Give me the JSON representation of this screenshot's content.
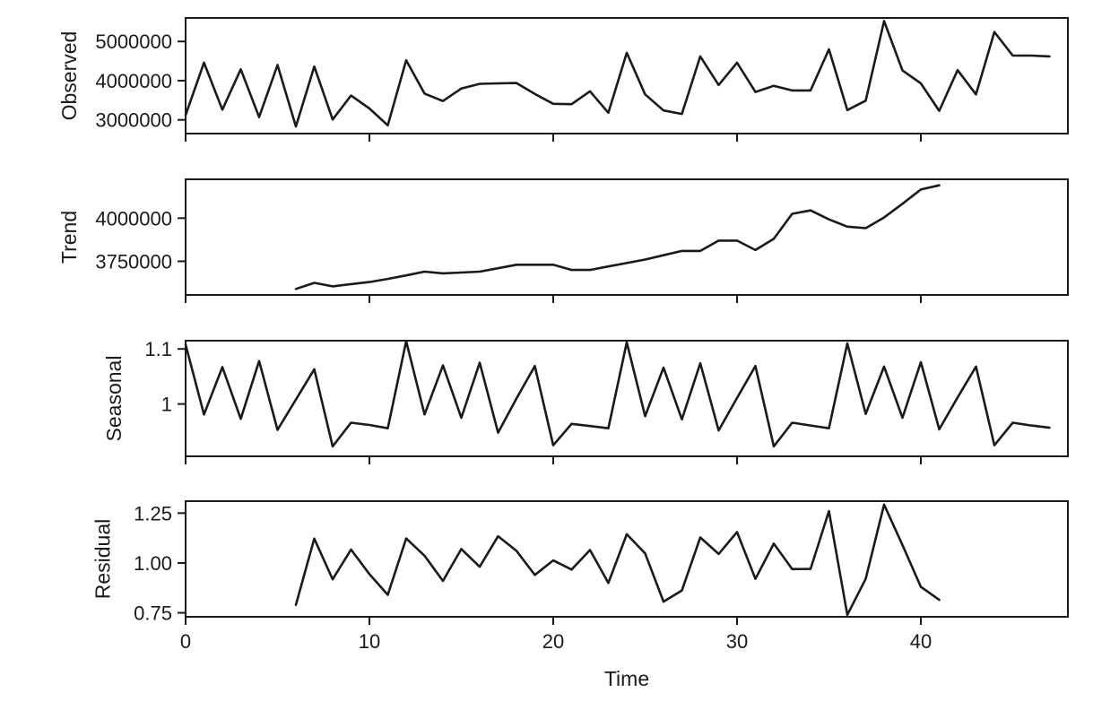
{
  "chart_data": {
    "type": "line",
    "xlabel": "Time",
    "xlim": [
      0,
      48
    ],
    "x_ticks": [
      0,
      10,
      20,
      30,
      40
    ],
    "panels": [
      {
        "name": "observed",
        "ylabel": "Observed",
        "ylim": [
          2650000,
          5600000
        ],
        "y_ticks": [
          3000000,
          4000000,
          5000000
        ],
        "x": [
          0,
          1,
          2,
          3,
          4,
          5,
          6,
          7,
          8,
          9,
          10,
          11,
          12,
          13,
          14,
          15,
          16,
          17,
          18,
          19,
          20,
          21,
          22,
          23,
          24,
          25,
          26,
          27,
          28,
          29,
          30,
          31,
          32,
          33,
          34,
          35,
          36,
          37,
          38,
          39,
          40,
          41,
          42,
          43,
          44,
          45,
          46,
          47
        ],
        "values": [
          3120000,
          4460000,
          3260000,
          4290000,
          3070000,
          4400000,
          2830000,
          4360000,
          3010000,
          3620000,
          3290000,
          2860000,
          4520000,
          3670000,
          3480000,
          3800000,
          3920000,
          3930000,
          3940000,
          3660000,
          3410000,
          3400000,
          3730000,
          3180000,
          4710000,
          3650000,
          3240000,
          3150000,
          4620000,
          3890000,
          4460000,
          3710000,
          3870000,
          3750000,
          3750000,
          4800000,
          3250000,
          3490000,
          5520000,
          4260000,
          3930000,
          3230000,
          4270000,
          3650000,
          5240000,
          4640000,
          4640000,
          4620000
        ]
      },
      {
        "name": "trend",
        "ylabel": "Trend",
        "ylim": [
          3555000,
          4225000
        ],
        "y_ticks": [
          3750000,
          4000000
        ],
        "x": [
          6,
          7,
          8,
          9,
          10,
          11,
          12,
          13,
          14,
          15,
          16,
          17,
          18,
          19,
          20,
          21,
          22,
          23,
          24,
          25,
          26,
          27,
          28,
          29,
          30,
          31,
          32,
          33,
          34,
          35,
          36,
          37,
          38,
          39,
          40,
          41
        ],
        "values": [
          3590000,
          3625000,
          3605000,
          3618000,
          3630000,
          3648000,
          3668000,
          3690000,
          3680000,
          3685000,
          3690000,
          3710000,
          3730000,
          3730000,
          3730000,
          3700000,
          3700000,
          3720000,
          3740000,
          3760000,
          3785000,
          3810000,
          3810000,
          3870000,
          3870000,
          3815000,
          3880000,
          4025000,
          4045000,
          3993000,
          3951000,
          3942000,
          4004000,
          4083000,
          4166000,
          4190000
        ]
      },
      {
        "name": "seasonal",
        "ylabel": "Seasonal",
        "ylim": [
          0.905,
          1.115
        ],
        "y_ticks": [
          1.0,
          1.1
        ],
        "x": [
          0,
          1,
          2,
          3,
          4,
          5,
          6,
          7,
          8,
          9,
          10,
          11,
          12,
          13,
          14,
          15,
          16,
          17,
          18,
          19,
          20,
          21,
          22,
          23,
          24,
          25,
          26,
          27,
          28,
          29,
          30,
          31,
          32,
          33,
          34,
          35,
          36,
          37,
          38,
          39,
          40,
          41,
          42,
          43,
          44,
          45,
          46,
          47
        ],
        "values": [
          1.108,
          0.981,
          1.067,
          0.973,
          1.078,
          0.953,
          1.008,
          1.063,
          0.923,
          0.966,
          0.962,
          0.956,
          1.114,
          0.981,
          1.07,
          0.975,
          1.075,
          0.948,
          1.01,
          1.069,
          0.925,
          0.964,
          0.96,
          0.956,
          1.112,
          0.978,
          1.066,
          0.972,
          1.074,
          0.952,
          1.011,
          1.069,
          0.923,
          0.966,
          0.961,
          0.956,
          1.11,
          0.982,
          1.068,
          0.975,
          1.076,
          0.954,
          1.012,
          1.068,
          0.925,
          0.966,
          0.961,
          0.957
        ]
      },
      {
        "name": "residual",
        "ylabel": "Residual",
        "ylim": [
          0.73,
          1.31
        ],
        "y_ticks": [
          0.75,
          1.0,
          1.25
        ],
        "y_tick_labels": [
          "0.75",
          "1.00",
          "1.25"
        ],
        "x": [
          6,
          7,
          8,
          9,
          10,
          11,
          12,
          13,
          14,
          15,
          16,
          17,
          18,
          19,
          20,
          21,
          22,
          23,
          24,
          25,
          26,
          27,
          28,
          29,
          30,
          31,
          32,
          33,
          34,
          35,
          36,
          37,
          38,
          39,
          40,
          41
        ],
        "values": [
          0.79,
          1.122,
          0.918,
          1.067,
          0.944,
          0.84,
          1.123,
          1.036,
          0.91,
          1.07,
          0.981,
          1.134,
          1.061,
          0.94,
          1.013,
          0.967,
          1.065,
          0.9,
          1.144,
          1.048,
          0.806,
          0.862,
          1.128,
          1.045,
          1.155,
          0.92,
          1.097,
          0.969,
          0.97,
          1.26,
          0.74,
          0.92,
          1.293,
          1.09,
          0.88,
          0.815
        ]
      }
    ]
  }
}
